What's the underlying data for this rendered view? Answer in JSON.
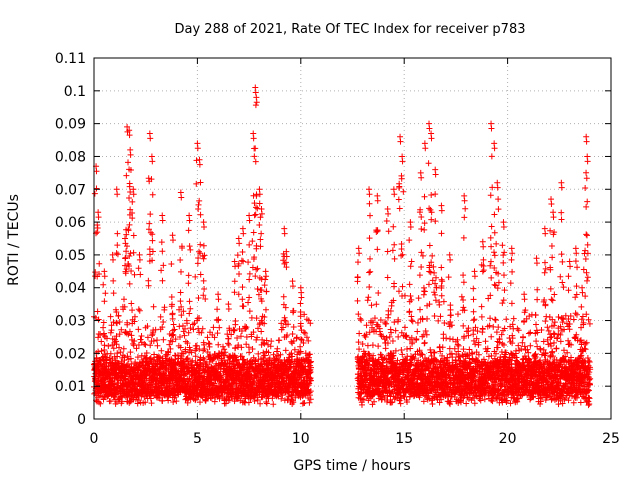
{
  "chart_data": {
    "type": "scatter",
    "title": "Day 288 of 2021, Rate Of TEC Index for receiver p783",
    "xlabel": "GPS time / hours",
    "ylabel": "ROTI / TECUs",
    "xlim": [
      0,
      25
    ],
    "ylim": [
      0,
      0.11
    ],
    "xticks": [
      0,
      5,
      10,
      15,
      20,
      25
    ],
    "yticks": [
      0,
      0.01,
      0.02,
      0.03,
      0.04,
      0.05,
      0.06,
      0.07,
      0.08,
      0.09,
      0.1,
      0.11
    ],
    "grid": true,
    "marker": "plus",
    "series": [
      {
        "name": "ROTI",
        "color": "#ff0000",
        "segments": [
          [
            0.0,
            10.5
          ],
          [
            12.75,
            24.0
          ]
        ],
        "peaks": [
          {
            "x": 0.1,
            "y": 0.077
          },
          {
            "x": 0.2,
            "y": 0.063
          },
          {
            "x": 0.5,
            "y": 0.045
          },
          {
            "x": 0.9,
            "y": 0.05
          },
          {
            "x": 1.1,
            "y": 0.07
          },
          {
            "x": 1.5,
            "y": 0.055
          },
          {
            "x": 1.6,
            "y": 0.089
          },
          {
            "x": 1.7,
            "y": 0.088
          },
          {
            "x": 1.75,
            "y": 0.082
          },
          {
            "x": 1.9,
            "y": 0.07
          },
          {
            "x": 2.2,
            "y": 0.05
          },
          {
            "x": 2.7,
            "y": 0.087
          },
          {
            "x": 2.8,
            "y": 0.08
          },
          {
            "x": 3.3,
            "y": 0.062
          },
          {
            "x": 3.8,
            "y": 0.056
          },
          {
            "x": 4.2,
            "y": 0.069
          },
          {
            "x": 4.6,
            "y": 0.062
          },
          {
            "x": 5.0,
            "y": 0.084
          },
          {
            "x": 5.1,
            "y": 0.079
          },
          {
            "x": 5.3,
            "y": 0.06
          },
          {
            "x": 6.0,
            "y": 0.038
          },
          {
            "x": 6.5,
            "y": 0.035
          },
          {
            "x": 6.8,
            "y": 0.048
          },
          {
            "x": 7.0,
            "y": 0.055
          },
          {
            "x": 7.2,
            "y": 0.058
          },
          {
            "x": 7.5,
            "y": 0.062
          },
          {
            "x": 7.7,
            "y": 0.087
          },
          {
            "x": 7.8,
            "y": 0.101
          },
          {
            "x": 7.85,
            "y": 0.098
          },
          {
            "x": 8.0,
            "y": 0.07
          },
          {
            "x": 8.1,
            "y": 0.064
          },
          {
            "x": 8.3,
            "y": 0.045
          },
          {
            "x": 9.2,
            "y": 0.058
          },
          {
            "x": 9.3,
            "y": 0.051
          },
          {
            "x": 9.6,
            "y": 0.042
          },
          {
            "x": 10.0,
            "y": 0.04
          },
          {
            "x": 12.8,
            "y": 0.052
          },
          {
            "x": 13.3,
            "y": 0.07
          },
          {
            "x": 13.7,
            "y": 0.068
          },
          {
            "x": 14.2,
            "y": 0.064
          },
          {
            "x": 14.5,
            "y": 0.07
          },
          {
            "x": 14.8,
            "y": 0.086
          },
          {
            "x": 14.9,
            "y": 0.08
          },
          {
            "x": 15.3,
            "y": 0.06
          },
          {
            "x": 15.8,
            "y": 0.075
          },
          {
            "x": 16.0,
            "y": 0.084
          },
          {
            "x": 16.2,
            "y": 0.09
          },
          {
            "x": 16.3,
            "y": 0.087
          },
          {
            "x": 16.5,
            "y": 0.076
          },
          {
            "x": 16.8,
            "y": 0.065
          },
          {
            "x": 17.2,
            "y": 0.05
          },
          {
            "x": 17.9,
            "y": 0.068
          },
          {
            "x": 18.4,
            "y": 0.045
          },
          {
            "x": 18.8,
            "y": 0.054
          },
          {
            "x": 19.2,
            "y": 0.09
          },
          {
            "x": 19.35,
            "y": 0.084
          },
          {
            "x": 19.5,
            "y": 0.072
          },
          {
            "x": 19.8,
            "y": 0.06
          },
          {
            "x": 20.2,
            "y": 0.052
          },
          {
            "x": 20.8,
            "y": 0.038
          },
          {
            "x": 21.4,
            "y": 0.049
          },
          {
            "x": 21.8,
            "y": 0.058
          },
          {
            "x": 22.1,
            "y": 0.067
          },
          {
            "x": 22.2,
            "y": 0.063
          },
          {
            "x": 22.6,
            "y": 0.072
          },
          {
            "x": 23.0,
            "y": 0.048
          },
          {
            "x": 23.3,
            "y": 0.052
          },
          {
            "x": 23.6,
            "y": 0.04
          },
          {
            "x": 23.8,
            "y": 0.086
          },
          {
            "x": 23.85,
            "y": 0.08
          }
        ]
      }
    ]
  }
}
